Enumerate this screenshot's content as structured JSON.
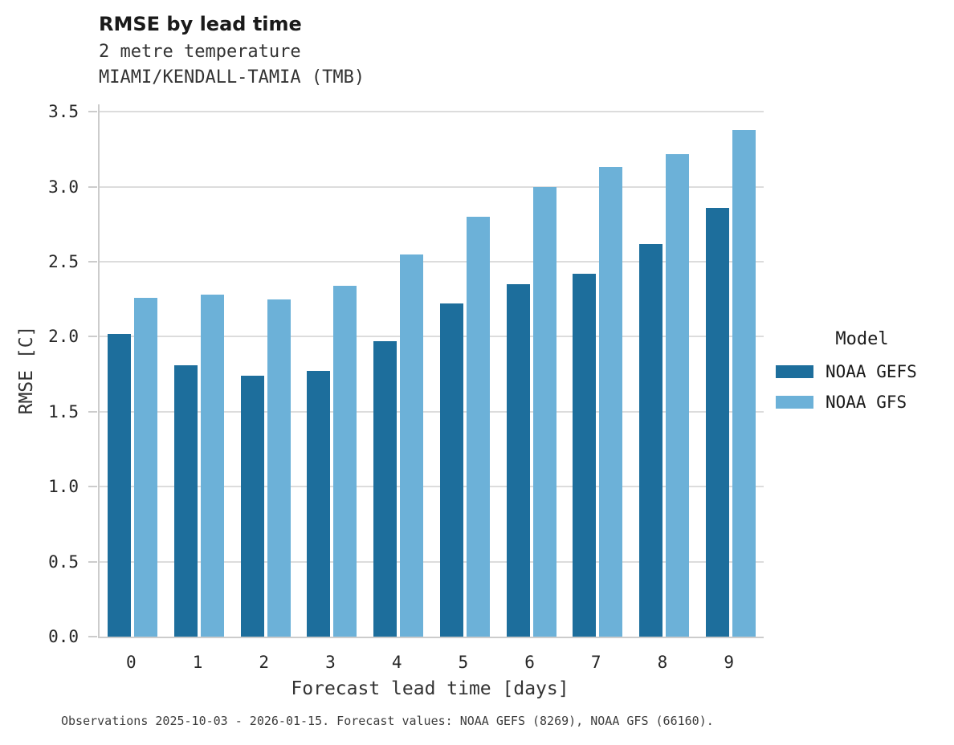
{
  "chart_data": {
    "type": "bar",
    "title": "RMSE by lead time",
    "subtitle": [
      "2 metre temperature",
      "MIAMI/KENDALL-TAMIA (TMB)"
    ],
    "categories": [
      "0",
      "1",
      "2",
      "3",
      "4",
      "5",
      "6",
      "7",
      "8",
      "9"
    ],
    "series": [
      {
        "name": "NOAA GEFS",
        "color": "#1d6e9c",
        "values": [
          2.02,
          1.81,
          1.74,
          1.77,
          1.97,
          2.22,
          2.35,
          2.42,
          2.62,
          2.86
        ]
      },
      {
        "name": "NOAA GFS",
        "color": "#6cb1d8",
        "values": [
          2.26,
          2.28,
          2.25,
          2.34,
          2.55,
          2.8,
          3.0,
          3.13,
          3.22,
          3.38
        ]
      }
    ],
    "xlabel": "Forecast lead time [days]",
    "ylabel": "RMSE [C]",
    "ylim": [
      0,
      3.55
    ],
    "yticks": [
      0.0,
      0.5,
      1.0,
      1.5,
      2.0,
      2.5,
      3.0,
      3.5
    ],
    "grid": true,
    "legend_title": "Model",
    "legend_position": "right-of-plot"
  },
  "footer": {
    "caption": "Observations 2025-10-03 - 2026-01-15. Forecast values: NOAA GEFS (8269), NOAA GFS (66160)."
  },
  "colors": {
    "series_dark": "#1d6e9c",
    "series_light": "#6cb1d8",
    "gridline": "#dcdcdc",
    "spine": "#cccccc",
    "text": "#262626"
  }
}
